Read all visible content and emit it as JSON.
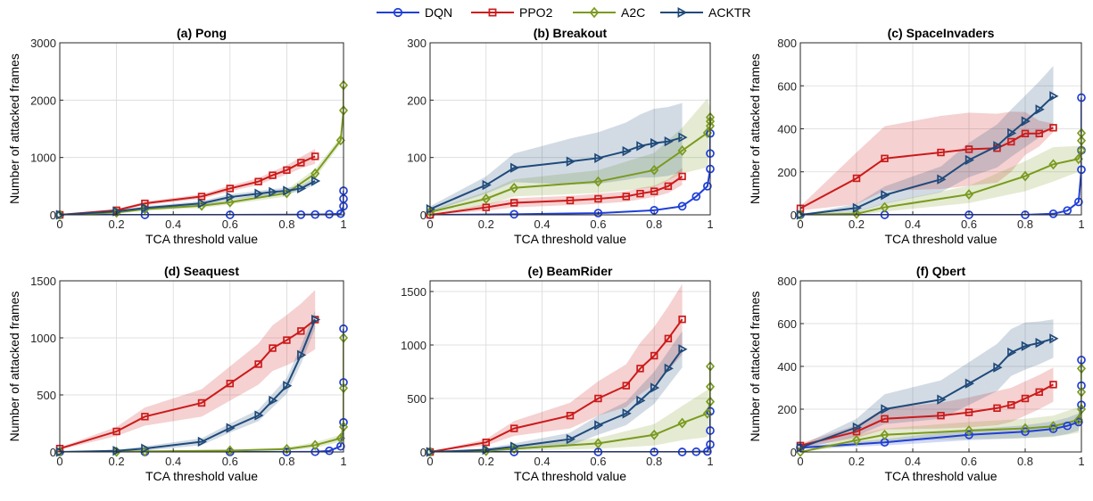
{
  "legend": {
    "items": [
      {
        "name": "DQN",
        "color": "#1f3fd6",
        "marker": "circle"
      },
      {
        "name": "PPO2",
        "color": "#cc1a1a",
        "marker": "square"
      },
      {
        "name": "A2C",
        "color": "#7a9a1e",
        "marker": "diamond"
      },
      {
        "name": "ACKTR",
        "color": "#1f4a7a",
        "marker": "triangle-right"
      }
    ]
  },
  "chart_data": [
    {
      "type": "line",
      "title": "(a) Pong",
      "xlabel": "TCA threshold value",
      "ylabel": "Number of attacked frames",
      "xlim": [
        0,
        1
      ],
      "ylim": [
        0,
        3000
      ],
      "xticks": [
        0,
        0.2,
        0.4,
        0.6,
        0.8,
        1
      ],
      "yticks": [
        0,
        1000,
        2000,
        3000
      ],
      "grid": true,
      "series": [
        {
          "name": "DQN",
          "x": [
            0,
            0.3,
            0.6,
            0.85,
            0.9,
            0.95,
            0.99,
            1,
            1,
            1
          ],
          "y": [
            0,
            0,
            0,
            3,
            5,
            10,
            20,
            150,
            280,
            420
          ],
          "band": [
            0,
            0,
            0,
            0,
            0,
            0,
            0,
            0,
            0,
            0
          ]
        },
        {
          "name": "PPO2",
          "x": [
            0,
            0.2,
            0.3,
            0.5,
            0.6,
            0.7,
            0.75,
            0.8,
            0.85,
            0.9
          ],
          "y": [
            0,
            80,
            200,
            320,
            460,
            580,
            690,
            780,
            910,
            1020
          ],
          "band": [
            0,
            20,
            30,
            40,
            50,
            60,
            70,
            80,
            100,
            130
          ]
        },
        {
          "name": "A2C",
          "x": [
            0,
            0.2,
            0.3,
            0.5,
            0.6,
            0.8,
            0.9,
            0.99,
            1,
            1
          ],
          "y": [
            0,
            40,
            100,
            160,
            220,
            380,
            720,
            1300,
            1820,
            2260
          ],
          "band": [
            0,
            20,
            30,
            40,
            40,
            60,
            80,
            60,
            60,
            60
          ]
        },
        {
          "name": "ACKTR",
          "x": [
            0,
            0.2,
            0.3,
            0.5,
            0.6,
            0.7,
            0.75,
            0.8,
            0.85,
            0.9
          ],
          "y": [
            0,
            60,
            120,
            200,
            310,
            370,
            400,
            420,
            460,
            590
          ],
          "band": [
            0,
            20,
            30,
            40,
            50,
            50,
            50,
            50,
            50,
            60
          ]
        }
      ]
    },
    {
      "type": "line",
      "title": "(b) Breakout",
      "xlabel": "TCA threshold value",
      "ylabel": "",
      "xlim": [
        0,
        1
      ],
      "ylim": [
        0,
        300
      ],
      "xticks": [
        0,
        0.2,
        0.4,
        0.6,
        0.8,
        1
      ],
      "yticks": [
        0,
        100,
        200,
        300
      ],
      "grid": true,
      "series": [
        {
          "name": "DQN",
          "x": [
            0,
            0.3,
            0.6,
            0.8,
            0.9,
            0.95,
            0.99,
            1,
            1,
            1
          ],
          "y": [
            0,
            1,
            3,
            8,
            15,
            32,
            50,
            80,
            107,
            142
          ],
          "band": [
            0,
            0,
            0,
            0,
            0,
            0,
            0,
            0,
            0,
            0
          ]
        },
        {
          "name": "PPO2",
          "x": [
            0,
            0.2,
            0.3,
            0.5,
            0.6,
            0.7,
            0.75,
            0.8,
            0.85,
            0.9
          ],
          "y": [
            0,
            13,
            21,
            25,
            28,
            32,
            37,
            41,
            50,
            67
          ],
          "band": [
            0,
            6,
            8,
            8,
            9,
            9,
            10,
            10,
            12,
            15
          ]
        },
        {
          "name": "A2C",
          "x": [
            0,
            0.2,
            0.3,
            0.6,
            0.8,
            0.9,
            0.99,
            1,
            1,
            1
          ],
          "y": [
            5,
            28,
            47,
            58,
            78,
            112,
            143,
            155,
            163,
            170
          ],
          "band": [
            3,
            12,
            15,
            20,
            30,
            40,
            60,
            30,
            20,
            20
          ]
        },
        {
          "name": "ACKTR",
          "x": [
            0,
            0.2,
            0.3,
            0.5,
            0.6,
            0.7,
            0.75,
            0.8,
            0.85,
            0.9
          ],
          "y": [
            10,
            52,
            82,
            93,
            99,
            111,
            120,
            125,
            128,
            135
          ],
          "band": [
            5,
            15,
            25,
            40,
            45,
            50,
            55,
            60,
            60,
            60
          ]
        }
      ]
    },
    {
      "type": "line",
      "title": "(c) SpaceInvaders",
      "xlabel": "TCA threshold value",
      "ylabel": "Number of attacked frames",
      "xlim": [
        0,
        1
      ],
      "ylim": [
        0,
        800
      ],
      "xticks": [
        0,
        0.2,
        0.4,
        0.6,
        0.8,
        1
      ],
      "yticks": [
        0,
        200,
        400,
        600,
        800
      ],
      "grid": true,
      "series": [
        {
          "name": "DQN",
          "x": [
            0,
            0.3,
            0.6,
            0.8,
            0.9,
            0.95,
            0.99,
            1,
            1,
            1
          ],
          "y": [
            0,
            0,
            0,
            0,
            5,
            20,
            60,
            210,
            300,
            545
          ],
          "band": [
            0,
            0,
            0,
            0,
            0,
            0,
            0,
            0,
            0,
            0
          ]
        },
        {
          "name": "PPO2",
          "x": [
            0,
            0.2,
            0.3,
            0.5,
            0.6,
            0.7,
            0.75,
            0.8,
            0.85,
            0.9
          ],
          "y": [
            30,
            170,
            262,
            290,
            305,
            310,
            340,
            378,
            378,
            405
          ],
          "band": [
            10,
            120,
            150,
            170,
            170,
            160,
            140,
            100,
            60,
            20
          ]
        },
        {
          "name": "A2C",
          "x": [
            0,
            0.2,
            0.3,
            0.6,
            0.8,
            0.9,
            0.99,
            1,
            1,
            1
          ],
          "y": [
            0,
            5,
            35,
            95,
            180,
            235,
            260,
            300,
            345,
            380
          ],
          "band": [
            0,
            10,
            20,
            40,
            70,
            80,
            60,
            30,
            20,
            20
          ]
        },
        {
          "name": "ACKTR",
          "x": [
            0,
            0.2,
            0.3,
            0.5,
            0.6,
            0.7,
            0.75,
            0.8,
            0.85,
            0.9
          ],
          "y": [
            0,
            32,
            92,
            165,
            255,
            320,
            380,
            435,
            490,
            552
          ],
          "band": [
            0,
            20,
            40,
            60,
            80,
            100,
            110,
            120,
            130,
            140
          ]
        }
      ]
    },
    {
      "type": "line",
      "title": "(d) Seaquest",
      "xlabel": "TCA threshold value",
      "ylabel": "Number of attacked frames",
      "xlim": [
        0,
        1
      ],
      "ylim": [
        0,
        1500
      ],
      "xticks": [
        0,
        0.2,
        0.4,
        0.6,
        0.8,
        1
      ],
      "yticks": [
        0,
        500,
        1000,
        1500
      ],
      "grid": true,
      "series": [
        {
          "name": "DQN",
          "x": [
            0,
            0.3,
            0.6,
            0.8,
            0.9,
            0.95,
            0.99,
            1,
            1,
            1
          ],
          "y": [
            0,
            0,
            0,
            0,
            2,
            10,
            50,
            260,
            610,
            1080
          ],
          "band": [
            0,
            0,
            0,
            0,
            0,
            0,
            0,
            0,
            0,
            0
          ]
        },
        {
          "name": "PPO2",
          "x": [
            0,
            0.2,
            0.3,
            0.5,
            0.6,
            0.7,
            0.75,
            0.8,
            0.85,
            0.9
          ],
          "y": [
            30,
            180,
            310,
            430,
            600,
            770,
            910,
            980,
            1060,
            1160
          ],
          "band": [
            10,
            40,
            80,
            120,
            150,
            180,
            200,
            220,
            240,
            260
          ]
        },
        {
          "name": "A2C",
          "x": [
            0,
            0.2,
            0.3,
            0.6,
            0.8,
            0.9,
            0.99,
            1,
            1,
            1
          ],
          "y": [
            0,
            2,
            5,
            12,
            25,
            60,
            120,
            220,
            560,
            1000
          ],
          "band": [
            0,
            2,
            3,
            8,
            15,
            25,
            30,
            30,
            30,
            30
          ]
        },
        {
          "name": "ACKTR",
          "x": [
            0,
            0.2,
            0.3,
            0.5,
            0.6,
            0.7,
            0.75,
            0.8,
            0.85,
            0.9
          ],
          "y": [
            0,
            10,
            30,
            90,
            210,
            320,
            450,
            580,
            850,
            1160
          ],
          "band": [
            0,
            10,
            20,
            30,
            40,
            50,
            60,
            70,
            80,
            80
          ]
        }
      ]
    },
    {
      "type": "line",
      "title": "(e) BeamRider",
      "xlabel": "TCA threshold value",
      "ylabel": "",
      "xlim": [
        0,
        1
      ],
      "ylim": [
        0,
        1600
      ],
      "xticks": [
        0,
        0.2,
        0.4,
        0.6,
        0.8,
        1
      ],
      "yticks": [
        0,
        500,
        1000,
        1500
      ],
      "grid": true,
      "series": [
        {
          "name": "DQN",
          "x": [
            0,
            0.3,
            0.6,
            0.8,
            0.9,
            0.95,
            0.99,
            1,
            1,
            1
          ],
          "y": [
            0,
            0,
            0,
            0,
            0,
            2,
            5,
            70,
            200,
            380
          ],
          "band": [
            0,
            0,
            0,
            0,
            0,
            0,
            0,
            0,
            0,
            0
          ]
        },
        {
          "name": "PPO2",
          "x": [
            0,
            0.2,
            0.3,
            0.5,
            0.6,
            0.7,
            0.75,
            0.8,
            0.85,
            0.9
          ],
          "y": [
            0,
            90,
            220,
            340,
            500,
            620,
            780,
            900,
            1060,
            1240
          ],
          "band": [
            0,
            30,
            70,
            120,
            160,
            200,
            240,
            270,
            300,
            330
          ]
        },
        {
          "name": "A2C",
          "x": [
            0,
            0.2,
            0.3,
            0.6,
            0.8,
            0.9,
            0.99,
            1,
            1,
            1
          ],
          "y": [
            0,
            10,
            30,
            80,
            160,
            270,
            360,
            470,
            610,
            800
          ],
          "band": [
            0,
            10,
            20,
            50,
            100,
            160,
            220,
            120,
            80,
            60
          ]
        },
        {
          "name": "ACKTR",
          "x": [
            0,
            0.2,
            0.3,
            0.5,
            0.6,
            0.7,
            0.75,
            0.8,
            0.85,
            0.9
          ],
          "y": [
            0,
            20,
            50,
            120,
            250,
            360,
            480,
            600,
            780,
            960
          ],
          "band": [
            0,
            15,
            30,
            60,
            90,
            110,
            130,
            150,
            160,
            170
          ]
        }
      ]
    },
    {
      "type": "line",
      "title": "(f) Qbert",
      "xlabel": "TCA threshold value",
      "ylabel": "Number of attacked frames",
      "xlim": [
        0,
        1
      ],
      "ylim": [
        0,
        800
      ],
      "xticks": [
        0,
        0.2,
        0.4,
        0.6,
        0.8,
        1
      ],
      "yticks": [
        0,
        200,
        400,
        600,
        800
      ],
      "grid": true,
      "series": [
        {
          "name": "DQN",
          "x": [
            0,
            0.3,
            0.6,
            0.8,
            0.9,
            0.95,
            0.99,
            1,
            1,
            1
          ],
          "y": [
            20,
            45,
            80,
            95,
            108,
            122,
            140,
            220,
            310,
            430
          ],
          "band": [
            5,
            15,
            25,
            30,
            35,
            38,
            40,
            20,
            20,
            20
          ]
        },
        {
          "name": "PPO2",
          "x": [
            0,
            0.2,
            0.3,
            0.5,
            0.6,
            0.7,
            0.75,
            0.8,
            0.85,
            0.9
          ],
          "y": [
            30,
            95,
            155,
            170,
            185,
            205,
            220,
            250,
            280,
            315
          ],
          "band": [
            10,
            30,
            50,
            60,
            70,
            80,
            80,
            80,
            80,
            80
          ]
        },
        {
          "name": "A2C",
          "x": [
            0,
            0.2,
            0.3,
            0.6,
            0.8,
            0.9,
            0.99,
            1,
            1,
            1
          ],
          "y": [
            0,
            55,
            80,
            100,
            110,
            120,
            150,
            200,
            280,
            390
          ],
          "band": [
            0,
            25,
            30,
            40,
            45,
            50,
            60,
            40,
            30,
            30
          ]
        },
        {
          "name": "ACKTR",
          "x": [
            0,
            0.2,
            0.3,
            0.5,
            0.6,
            0.7,
            0.75,
            0.8,
            0.85,
            0.9
          ],
          "y": [
            20,
            115,
            200,
            245,
            320,
            395,
            465,
            495,
            510,
            530
          ],
          "band": [
            10,
            40,
            70,
            90,
            100,
            110,
            110,
            110,
            100,
            90
          ]
        }
      ]
    }
  ]
}
